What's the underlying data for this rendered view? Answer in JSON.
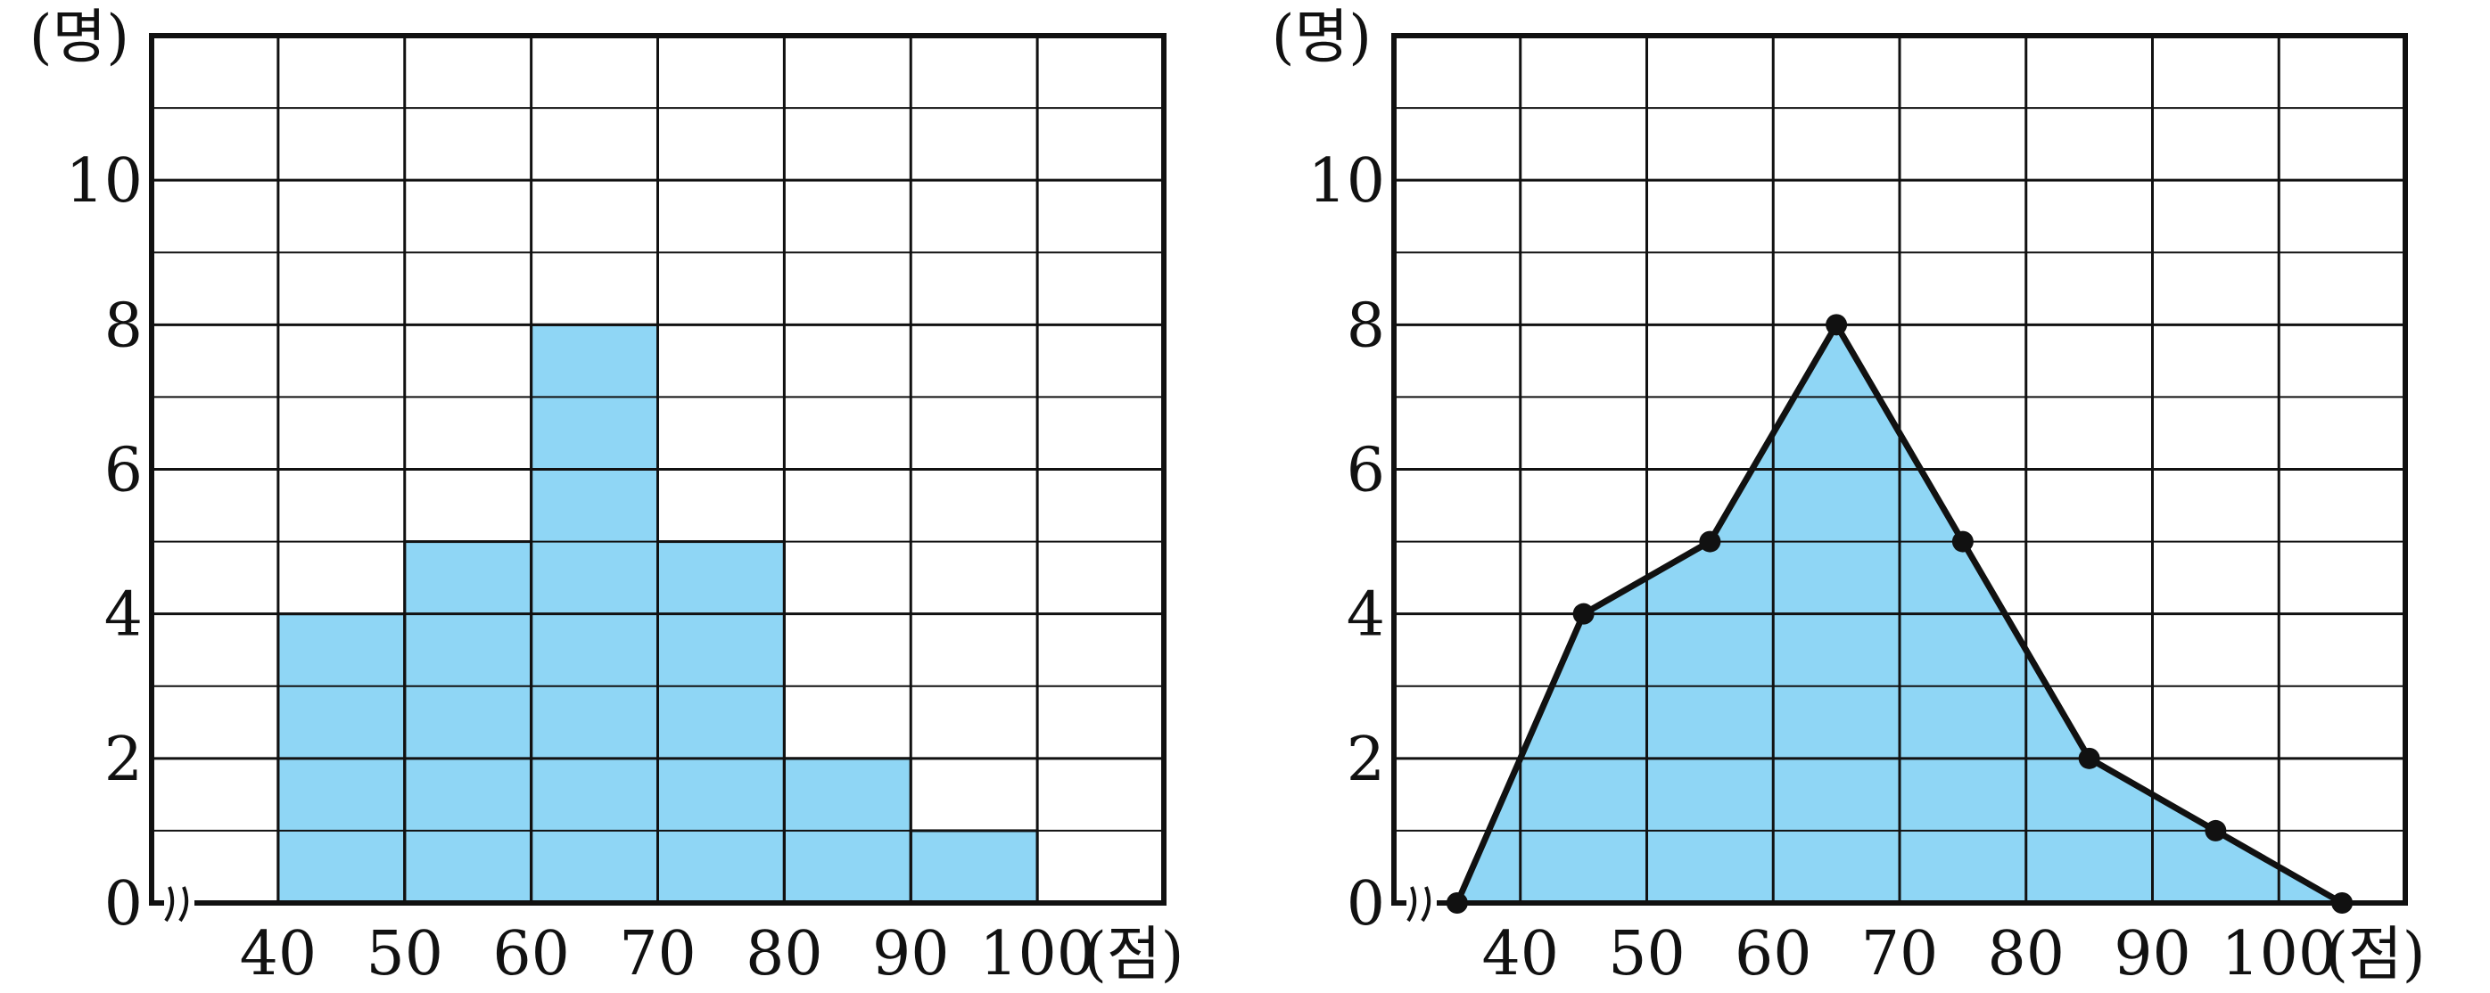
{
  "chart_data": [
    {
      "type": "bar",
      "variant": "histogram",
      "fill_color": "#8fd6f5",
      "y_unit": "(명)",
      "x_unit": "(점)",
      "x_ticks": [
        "40",
        "50",
        "60",
        "70",
        "80",
        "90",
        "100"
      ],
      "y_ticks": [
        "0",
        "2",
        "4",
        "6",
        "8",
        "10"
      ],
      "bins": [
        {
          "from": 40,
          "to": 50,
          "count": 4
        },
        {
          "from": 50,
          "to": 60,
          "count": 5
        },
        {
          "from": 60,
          "to": 70,
          "count": 8
        },
        {
          "from": 70,
          "to": 80,
          "count": 5
        },
        {
          "from": 80,
          "to": 90,
          "count": 2
        },
        {
          "from": 90,
          "to": 100,
          "count": 1
        }
      ],
      "xlim": [
        30,
        110
      ],
      "ylim": [
        0,
        12
      ],
      "grid": true,
      "axis_break": true
    },
    {
      "type": "line",
      "variant": "frequency-polygon",
      "fill_color": "#8fd6f5",
      "line_color": "#111111",
      "y_unit": "(명)",
      "x_unit": "(점)",
      "x_ticks": [
        "40",
        "50",
        "60",
        "70",
        "80",
        "90",
        "100"
      ],
      "y_ticks": [
        "0",
        "2",
        "4",
        "6",
        "8",
        "10"
      ],
      "points": [
        {
          "x": 35,
          "y": 0
        },
        {
          "x": 45,
          "y": 4
        },
        {
          "x": 55,
          "y": 5
        },
        {
          "x": 65,
          "y": 8
        },
        {
          "x": 75,
          "y": 5
        },
        {
          "x": 85,
          "y": 2
        },
        {
          "x": 95,
          "y": 1
        },
        {
          "x": 105,
          "y": 0
        }
      ],
      "xlim": [
        30,
        110
      ],
      "ylim": [
        0,
        12
      ],
      "grid": true,
      "axis_break": true
    }
  ]
}
